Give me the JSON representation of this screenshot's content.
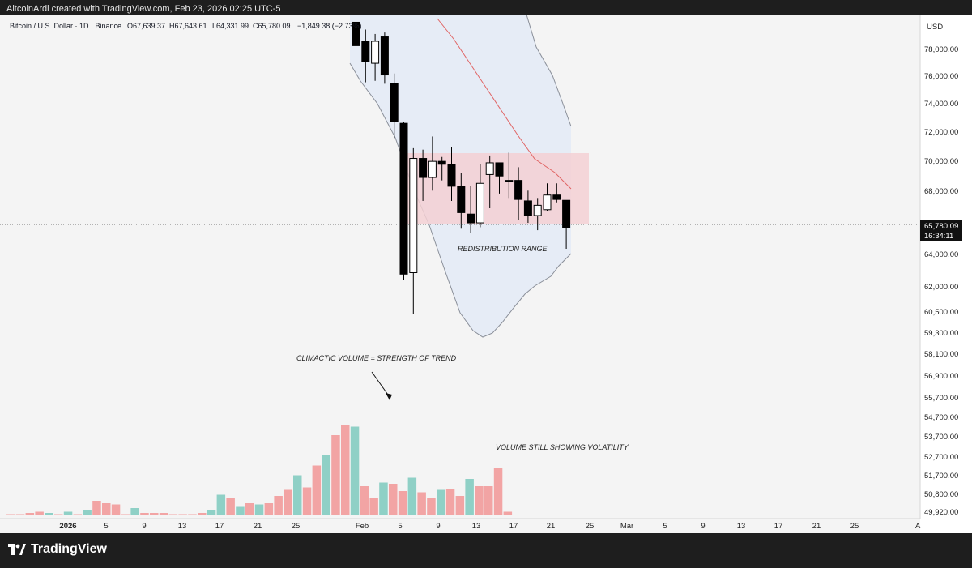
{
  "header": {
    "attribution": "AltcoinArdi created with TradingView.com, Feb 23, 2026 02:25 UTC-5"
  },
  "legend": {
    "symbol": "Bitcoin / U.S. Dollar · 1D · Binance",
    "open": "O67,639.37",
    "high": "H67,643.61",
    "low": "L64,331.99",
    "close": "C65,780.09",
    "change": "−1,849.38 (−2.73%)"
  },
  "currency": "USD",
  "price_axis": {
    "labels": [
      "78,000.00",
      "76,000.00",
      "74,000.00",
      "72,000.00",
      "70,000.00",
      "68,000.00",
      "64,000.00",
      "62,000.00",
      "60,500.00",
      "59,300.00",
      "58,100.00",
      "56,900.00",
      "55,700.00",
      "54,700.00",
      "53,700.00",
      "52,700.00",
      "51,700.00",
      "50,800.00",
      "49,920.00"
    ],
    "current_price": "65,780.09",
    "countdown": "16:34:11"
  },
  "time_axis": {
    "labels": [
      "2026",
      "5",
      "9",
      "13",
      "17",
      "21",
      "25",
      "Feb",
      "5",
      "9",
      "13",
      "17",
      "21",
      "25",
      "Mar",
      "5",
      "9",
      "13",
      "17",
      "21",
      "25"
    ]
  },
  "annotations": {
    "range": "REDISTRIBUTION RANGE",
    "climactic": "CLIMACTIC VOLUME = STRENGTH OF TREND",
    "volatility": "VOLUME STILL SHOWING VOLATILITY"
  },
  "footer": {
    "brand": "TradingView"
  },
  "colors": {
    "up_volume": "#8fd0c6",
    "down_volume": "#f2a4a4",
    "range_box": "#f3d0d3",
    "band_fill": "#e6ecf6",
    "ma_line": "#e06464"
  },
  "chart_data": {
    "type": "candlestick",
    "price_range": [
      58800,
      79500
    ],
    "candles": [
      {
        "date": "Feb 1",
        "o": 79800,
        "h": 80200,
        "l": 77800,
        "c": 78200
      },
      {
        "date": "Feb 2",
        "o": 78500,
        "h": 79300,
        "l": 75700,
        "c": 77100
      },
      {
        "date": "Feb 3",
        "o": 77000,
        "h": 79000,
        "l": 75800,
        "c": 78500
      },
      {
        "date": "Feb 4",
        "o": 78800,
        "h": 79100,
        "l": 75600,
        "c": 76200
      },
      {
        "date": "Feb 5",
        "o": 75600,
        "h": 76300,
        "l": 71900,
        "c": 73000
      },
      {
        "date": "Feb 6",
        "o": 72900,
        "h": 73000,
        "l": 62200,
        "c": 62600
      },
      {
        "date": "Feb 7",
        "o": 62700,
        "h": 71200,
        "l": 59900,
        "c": 70500
      },
      {
        "date": "Feb 8",
        "o": 70500,
        "h": 71100,
        "l": 67600,
        "c": 69200
      },
      {
        "date": "Feb 9",
        "o": 69200,
        "h": 72000,
        "l": 68300,
        "c": 70300
      },
      {
        "date": "Feb 10",
        "o": 70300,
        "h": 70600,
        "l": 69000,
        "c": 70100
      },
      {
        "date": "Feb 11",
        "o": 70100,
        "h": 71300,
        "l": 67600,
        "c": 68600
      },
      {
        "date": "Feb 12",
        "o": 68600,
        "h": 69500,
        "l": 65700,
        "c": 66800
      },
      {
        "date": "Feb 13",
        "o": 66700,
        "h": 68600,
        "l": 65400,
        "c": 66100
      },
      {
        "date": "Feb 14",
        "o": 66100,
        "h": 70100,
        "l": 65800,
        "c": 68800
      },
      {
        "date": "Feb 15",
        "o": 69400,
        "h": 70700,
        "l": 67100,
        "c": 70200
      },
      {
        "date": "Feb 16",
        "o": 70200,
        "h": 70200,
        "l": 68100,
        "c": 69300
      },
      {
        "date": "Feb 17",
        "o": 69000,
        "h": 70900,
        "l": 67800,
        "c": 69000
      },
      {
        "date": "Feb 18",
        "o": 69000,
        "h": 69900,
        "l": 66300,
        "c": 67700
      },
      {
        "date": "Feb 19",
        "o": 67600,
        "h": 68300,
        "l": 66100,
        "c": 66600
      },
      {
        "date": "Feb 20",
        "o": 66600,
        "h": 67800,
        "l": 65600,
        "c": 67300
      },
      {
        "date": "Feb 21",
        "o": 67000,
        "h": 68800,
        "l": 66900,
        "c": 68000
      },
      {
        "date": "Feb 22",
        "o": 68000,
        "h": 68800,
        "l": 67500,
        "c": 67700
      },
      {
        "date": "Feb 23",
        "o": 67639.37,
        "h": 67643.61,
        "l": 64331.99,
        "c": 65780.09
      }
    ],
    "volume": {
      "note": "relative bar heights (0-100)",
      "values": [
        1,
        1,
        2,
        3,
        2,
        1,
        3,
        1,
        4,
        12,
        10,
        9,
        1,
        6,
        2,
        2,
        2,
        1,
        1,
        1,
        2,
        4,
        17,
        14,
        7,
        10,
        9,
        10,
        16,
        21,
        33,
        23,
        41,
        50,
        66,
        74,
        73,
        24,
        14,
        27,
        26,
        20,
        31,
        19,
        14,
        21,
        22,
        16,
        30,
        24,
        24,
        39,
        3
      ],
      "is_up": [
        0,
        0,
        0,
        0,
        1,
        0,
        1,
        0,
        1,
        0,
        0,
        0,
        0,
        1,
        0,
        0,
        0,
        0,
        0,
        0,
        0,
        1,
        1,
        0,
        1,
        0,
        1,
        0,
        0,
        0,
        1,
        0,
        0,
        1,
        0,
        0,
        1,
        0,
        0,
        1,
        0,
        0,
        1,
        0,
        0,
        1,
        0,
        0,
        1,
        0,
        0,
        0,
        0
      ]
    }
  }
}
